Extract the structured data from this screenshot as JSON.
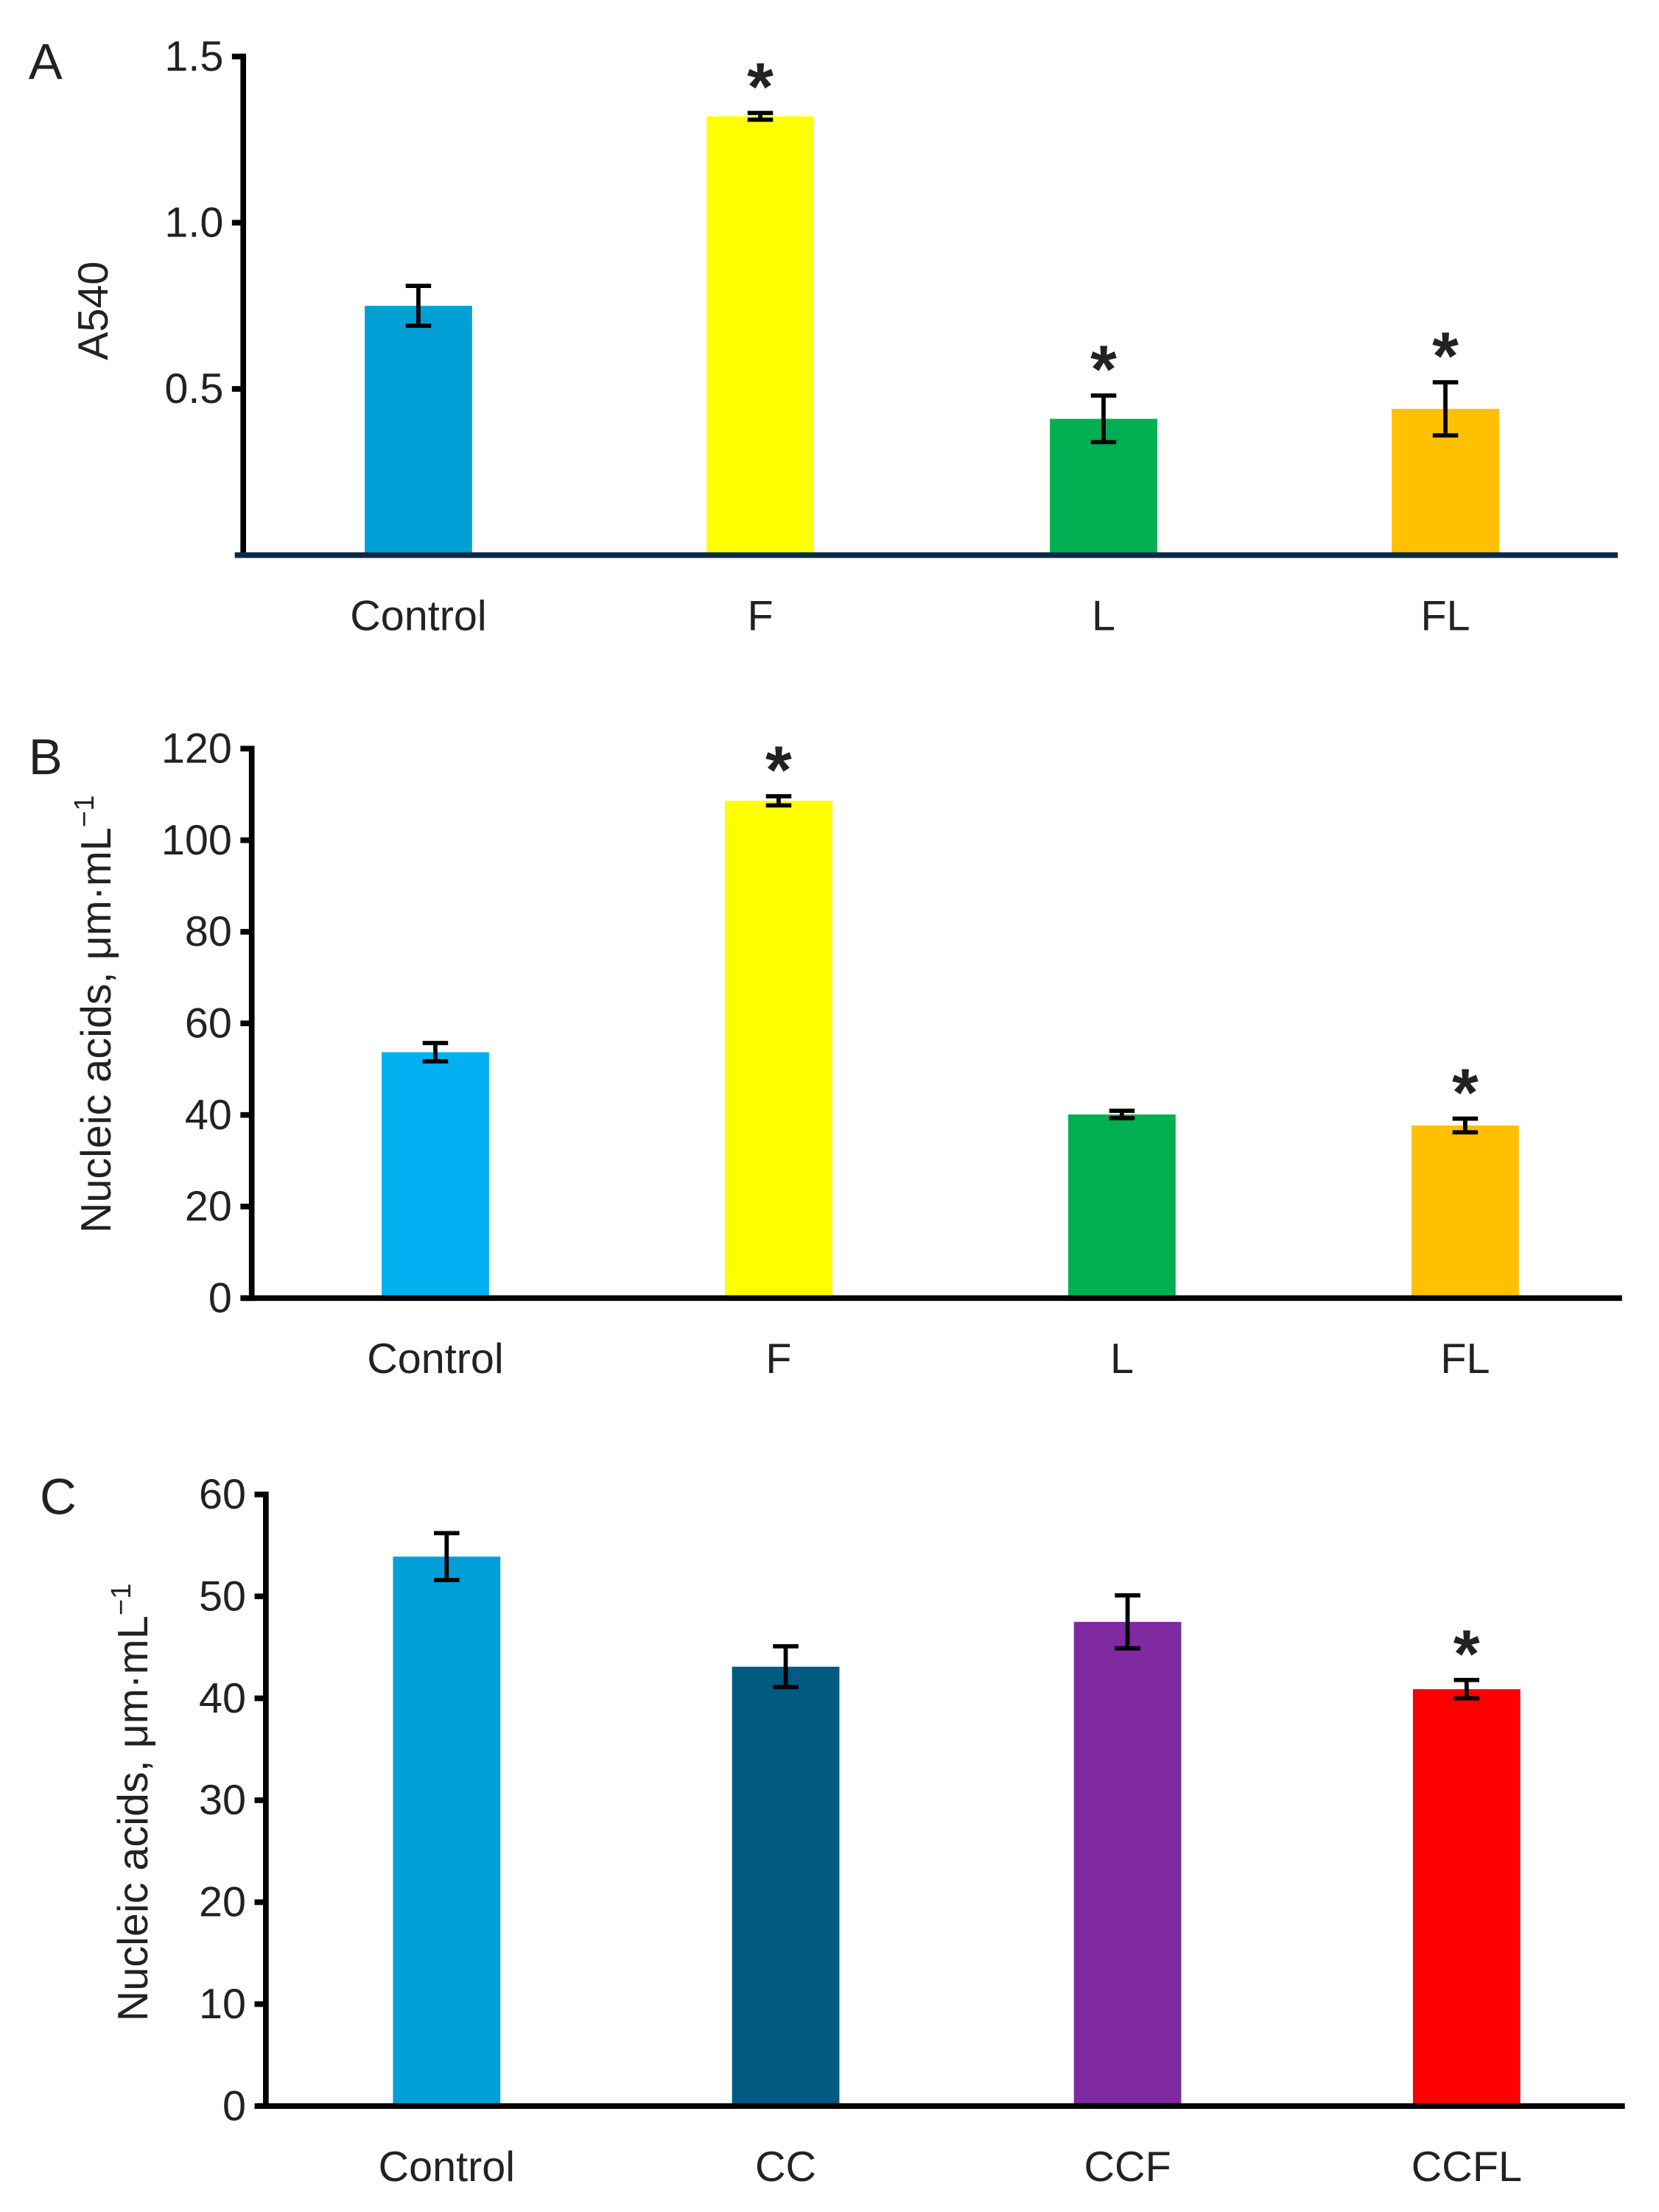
{
  "chart_data": [
    {
      "panel": "A",
      "type": "bar",
      "ylabel": "A540",
      "ylabel_sup": "",
      "categories": [
        "Control",
        "F",
        "L",
        "FL"
      ],
      "values": [
        0.75,
        1.32,
        0.41,
        0.44
      ],
      "errors": [
        0.06,
        0.01,
        0.07,
        0.08
      ],
      "significant": [
        false,
        true,
        true,
        true
      ],
      "colors": [
        "#00A0D6",
        "#FFFF00",
        "#00B050",
        "#FFC000"
      ],
      "ylim": [
        0,
        1.5
      ],
      "yticks": [
        0.5,
        1.0,
        1.5
      ],
      "ytick_labels": [
        "0.5",
        "1.0",
        "1.5"
      ],
      "xaxis_color": "#0d2a44"
    },
    {
      "panel": "B",
      "type": "bar",
      "ylabel": "Nucleic acids, μm·mL",
      "ylabel_sup": "−1",
      "categories": [
        "Control",
        "F",
        "L",
        "FL"
      ],
      "values": [
        53.7,
        108.6,
        40.1,
        37.7
      ],
      "errors": [
        2.0,
        1.0,
        0.8,
        1.5
      ],
      "significant": [
        false,
        true,
        false,
        true
      ],
      "colors": [
        "#00B0F0",
        "#FFFF00",
        "#00B050",
        "#FFC000"
      ],
      "ylim": [
        0,
        120
      ],
      "yticks": [
        0,
        20,
        40,
        60,
        80,
        100,
        120
      ],
      "ytick_labels": [
        "0",
        "20",
        "40",
        "60",
        "80",
        "100",
        "120"
      ],
      "xaxis_color": "#000000"
    },
    {
      "panel": "C",
      "type": "bar",
      "ylabel": "Nucleic acids, μm·mL",
      "ylabel_sup": "−1",
      "categories": [
        "Control",
        "CC",
        "CCF",
        "CCFL"
      ],
      "values": [
        53.9,
        43.1,
        47.5,
        40.9
      ],
      "errors": [
        2.3,
        2.0,
        2.6,
        0.9
      ],
      "significant": [
        false,
        false,
        false,
        true
      ],
      "colors": [
        "#009FD8",
        "#005A82",
        "#7F2AA0",
        "#FF0000"
      ],
      "ylim": [
        0,
        60
      ],
      "yticks": [
        0,
        10,
        20,
        30,
        40,
        50,
        60
      ],
      "ytick_labels": [
        "0",
        "10",
        "20",
        "30",
        "40",
        "50",
        "60"
      ],
      "xaxis_color": "#000000"
    }
  ],
  "significance_mark": "*"
}
